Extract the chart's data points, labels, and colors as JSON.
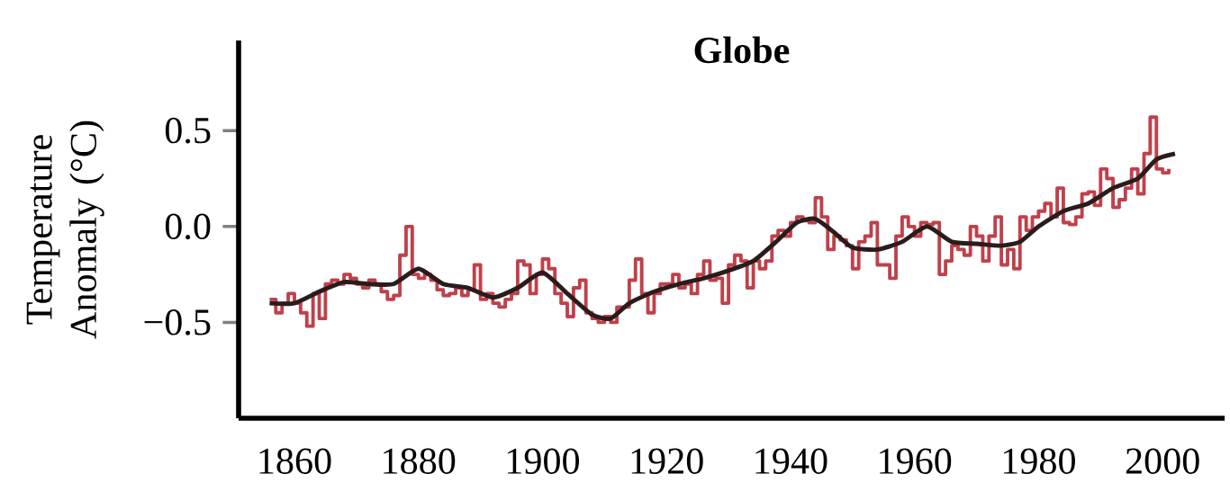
{
  "chart_data": {
    "type": "line",
    "title": "Globe",
    "ylabel": "Temperature Anomaly (°C)",
    "xlim": [
      1851,
      2010
    ],
    "ylim": [
      -1.0,
      0.97
    ],
    "xticks": [
      1860,
      1880,
      1900,
      1920,
      1940,
      1960,
      1980,
      2000
    ],
    "yticks": [
      {
        "value": -0.5,
        "label": "−0.5"
      },
      {
        "value": 0,
        "label": "0.0"
      },
      0.5
    ],
    "tick_labels": true,
    "series": [
      {
        "type": "step",
        "color": "#c0404a",
        "x": [
          1856,
          1857,
          1858,
          1859,
          1860,
          1861,
          1862,
          1863,
          1864,
          1865,
          1866,
          1867,
          1868,
          1869,
          1870,
          1871,
          1872,
          1873,
          1874,
          1875,
          1876,
          1877,
          1878,
          1879,
          1880,
          1881,
          1882,
          1883,
          1884,
          1885,
          1886,
          1887,
          1888,
          1889,
          1890,
          1891,
          1892,
          1893,
          1894,
          1895,
          1896,
          1897,
          1898,
          1899,
          1900,
          1901,
          1902,
          1903,
          1904,
          1905,
          1906,
          1907,
          1908,
          1909,
          1910,
          1911,
          1912,
          1913,
          1914,
          1915,
          1916,
          1917,
          1918,
          1919,
          1920,
          1921,
          1922,
          1923,
          1924,
          1925,
          1926,
          1927,
          1928,
          1929,
          1930,
          1931,
          1932,
          1933,
          1934,
          1935,
          1936,
          1937,
          1938,
          1939,
          1940,
          1941,
          1942,
          1943,
          1944,
          1945,
          1946,
          1947,
          1948,
          1949,
          1950,
          1951,
          1952,
          1953,
          1954,
          1955,
          1956,
          1957,
          1958,
          1959,
          1960,
          1961,
          1962,
          1963,
          1964,
          1965,
          1966,
          1967,
          1968,
          1969,
          1970,
          1971,
          1972,
          1973,
          1974,
          1975,
          1976,
          1977,
          1978,
          1979,
          1980,
          1981,
          1982,
          1983,
          1984,
          1985,
          1986,
          1987,
          1988,
          1989,
          1990,
          1991,
          1992,
          1993,
          1994,
          1995,
          1996,
          1997,
          1998,
          1999,
          2000,
          2001
        ],
        "values": [
          -0.38,
          -0.45,
          -0.4,
          -0.35,
          -0.4,
          -0.45,
          -0.52,
          -0.35,
          -0.48,
          -0.3,
          -0.28,
          -0.3,
          -0.25,
          -0.27,
          -0.3,
          -0.32,
          -0.28,
          -0.3,
          -0.34,
          -0.38,
          -0.36,
          -0.15,
          0.0,
          -0.25,
          -0.27,
          -0.25,
          -0.28,
          -0.33,
          -0.36,
          -0.35,
          -0.32,
          -0.36,
          -0.33,
          -0.2,
          -0.38,
          -0.35,
          -0.4,
          -0.42,
          -0.38,
          -0.35,
          -0.18,
          -0.2,
          -0.35,
          -0.25,
          -0.17,
          -0.22,
          -0.35,
          -0.4,
          -0.47,
          -0.32,
          -0.28,
          -0.45,
          -0.48,
          -0.5,
          -0.47,
          -0.5,
          -0.42,
          -0.42,
          -0.28,
          -0.17,
          -0.35,
          -0.45,
          -0.35,
          -0.3,
          -0.3,
          -0.25,
          -0.32,
          -0.3,
          -0.35,
          -0.25,
          -0.18,
          -0.28,
          -0.27,
          -0.4,
          -0.2,
          -0.15,
          -0.18,
          -0.32,
          -0.18,
          -0.22,
          -0.18,
          -0.05,
          -0.02,
          -0.05,
          0.02,
          0.05,
          0.03,
          0.02,
          0.15,
          0.05,
          -0.12,
          -0.05,
          -0.07,
          -0.1,
          -0.22,
          -0.08,
          -0.05,
          0.02,
          -0.2,
          -0.2,
          -0.27,
          -0.05,
          0.05,
          0.0,
          -0.05,
          0.02,
          0.01,
          0.02,
          -0.25,
          -0.18,
          -0.1,
          -0.12,
          -0.15,
          0.0,
          -0.05,
          -0.18,
          -0.05,
          0.05,
          -0.2,
          -0.12,
          -0.22,
          0.05,
          -0.02,
          0.05,
          0.08,
          0.12,
          0.05,
          0.2,
          0.02,
          0.01,
          0.05,
          0.17,
          0.18,
          0.11,
          0.3,
          0.25,
          0.1,
          0.14,
          0.2,
          0.3,
          0.17,
          0.38,
          0.57,
          0.3,
          0.28,
          0.3
        ]
      },
      {
        "type": "line",
        "color": "#2a1c1c",
        "x": [
          1856,
          1860,
          1864,
          1868,
          1872,
          1876,
          1880,
          1884,
          1888,
          1892,
          1896,
          1900,
          1904,
          1908,
          1911,
          1914,
          1918,
          1922,
          1926,
          1930,
          1934,
          1938,
          1941,
          1944,
          1947,
          1950,
          1954,
          1958,
          1962,
          1966,
          1970,
          1974,
          1977,
          1980,
          1984,
          1988,
          1992,
          1996,
          1999,
          2002
        ],
        "values": [
          -0.4,
          -0.4,
          -0.34,
          -0.29,
          -0.3,
          -0.3,
          -0.22,
          -0.3,
          -0.32,
          -0.37,
          -0.32,
          -0.24,
          -0.35,
          -0.46,
          -0.48,
          -0.4,
          -0.34,
          -0.3,
          -0.27,
          -0.23,
          -0.18,
          -0.07,
          0.02,
          0.04,
          -0.03,
          -0.11,
          -0.12,
          -0.08,
          0.0,
          -0.08,
          -0.09,
          -0.1,
          -0.08,
          0.0,
          0.08,
          0.12,
          0.2,
          0.25,
          0.35,
          0.38
        ]
      }
    ]
  }
}
